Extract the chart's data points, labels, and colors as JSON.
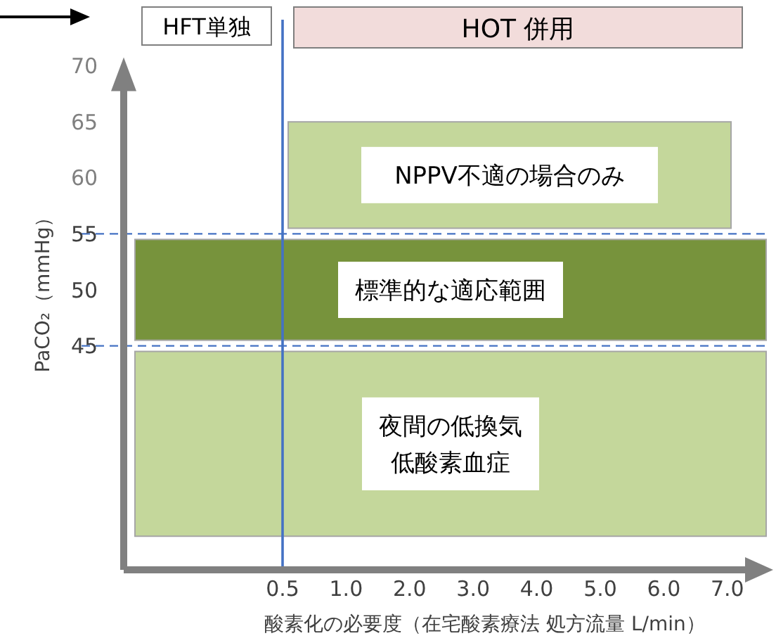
{
  "chart_data": {
    "type": "line",
    "xlabel": "酸素化の必要度（在宅酸素療法 処方流量 L/min）",
    "ylabel": "PaCO₂（mmHg）",
    "categories": [
      null,
      null,
      "0.5",
      "1.0",
      "2.0",
      "3.0",
      "4.0",
      "5.0",
      "6.0",
      "7.0"
    ],
    "ylim": [
      25,
      70
    ],
    "yticks": [
      45,
      50,
      55,
      60,
      65,
      70
    ],
    "ref_lines": [
      {
        "axis": "y",
        "value": 45,
        "color": "#4472c4",
        "line_style": "dashed"
      },
      {
        "axis": "y",
        "value": 55,
        "color": "#4472c4",
        "line_style": "dashed"
      },
      {
        "axis": "x",
        "value": "0.5",
        "color": "#4472c4",
        "line_style": "solid"
      }
    ],
    "bands": [
      {
        "axis": "y",
        "from": 55.5,
        "to": 65,
        "label": "NPPV不適の場合のみ",
        "color": "#c4d79b"
      },
      {
        "axis": "y",
        "from": 45.5,
        "to": 54.5,
        "label": "標準的な適応範囲",
        "color": "#77933c"
      },
      {
        "axis": "y",
        "from": 28,
        "to": 44.5,
        "label": "夜間の低換気低酸素血症",
        "color": "#c4d79b"
      }
    ],
    "annotations": [
      "HFT単独",
      "HOT 併用"
    ]
  }
}
